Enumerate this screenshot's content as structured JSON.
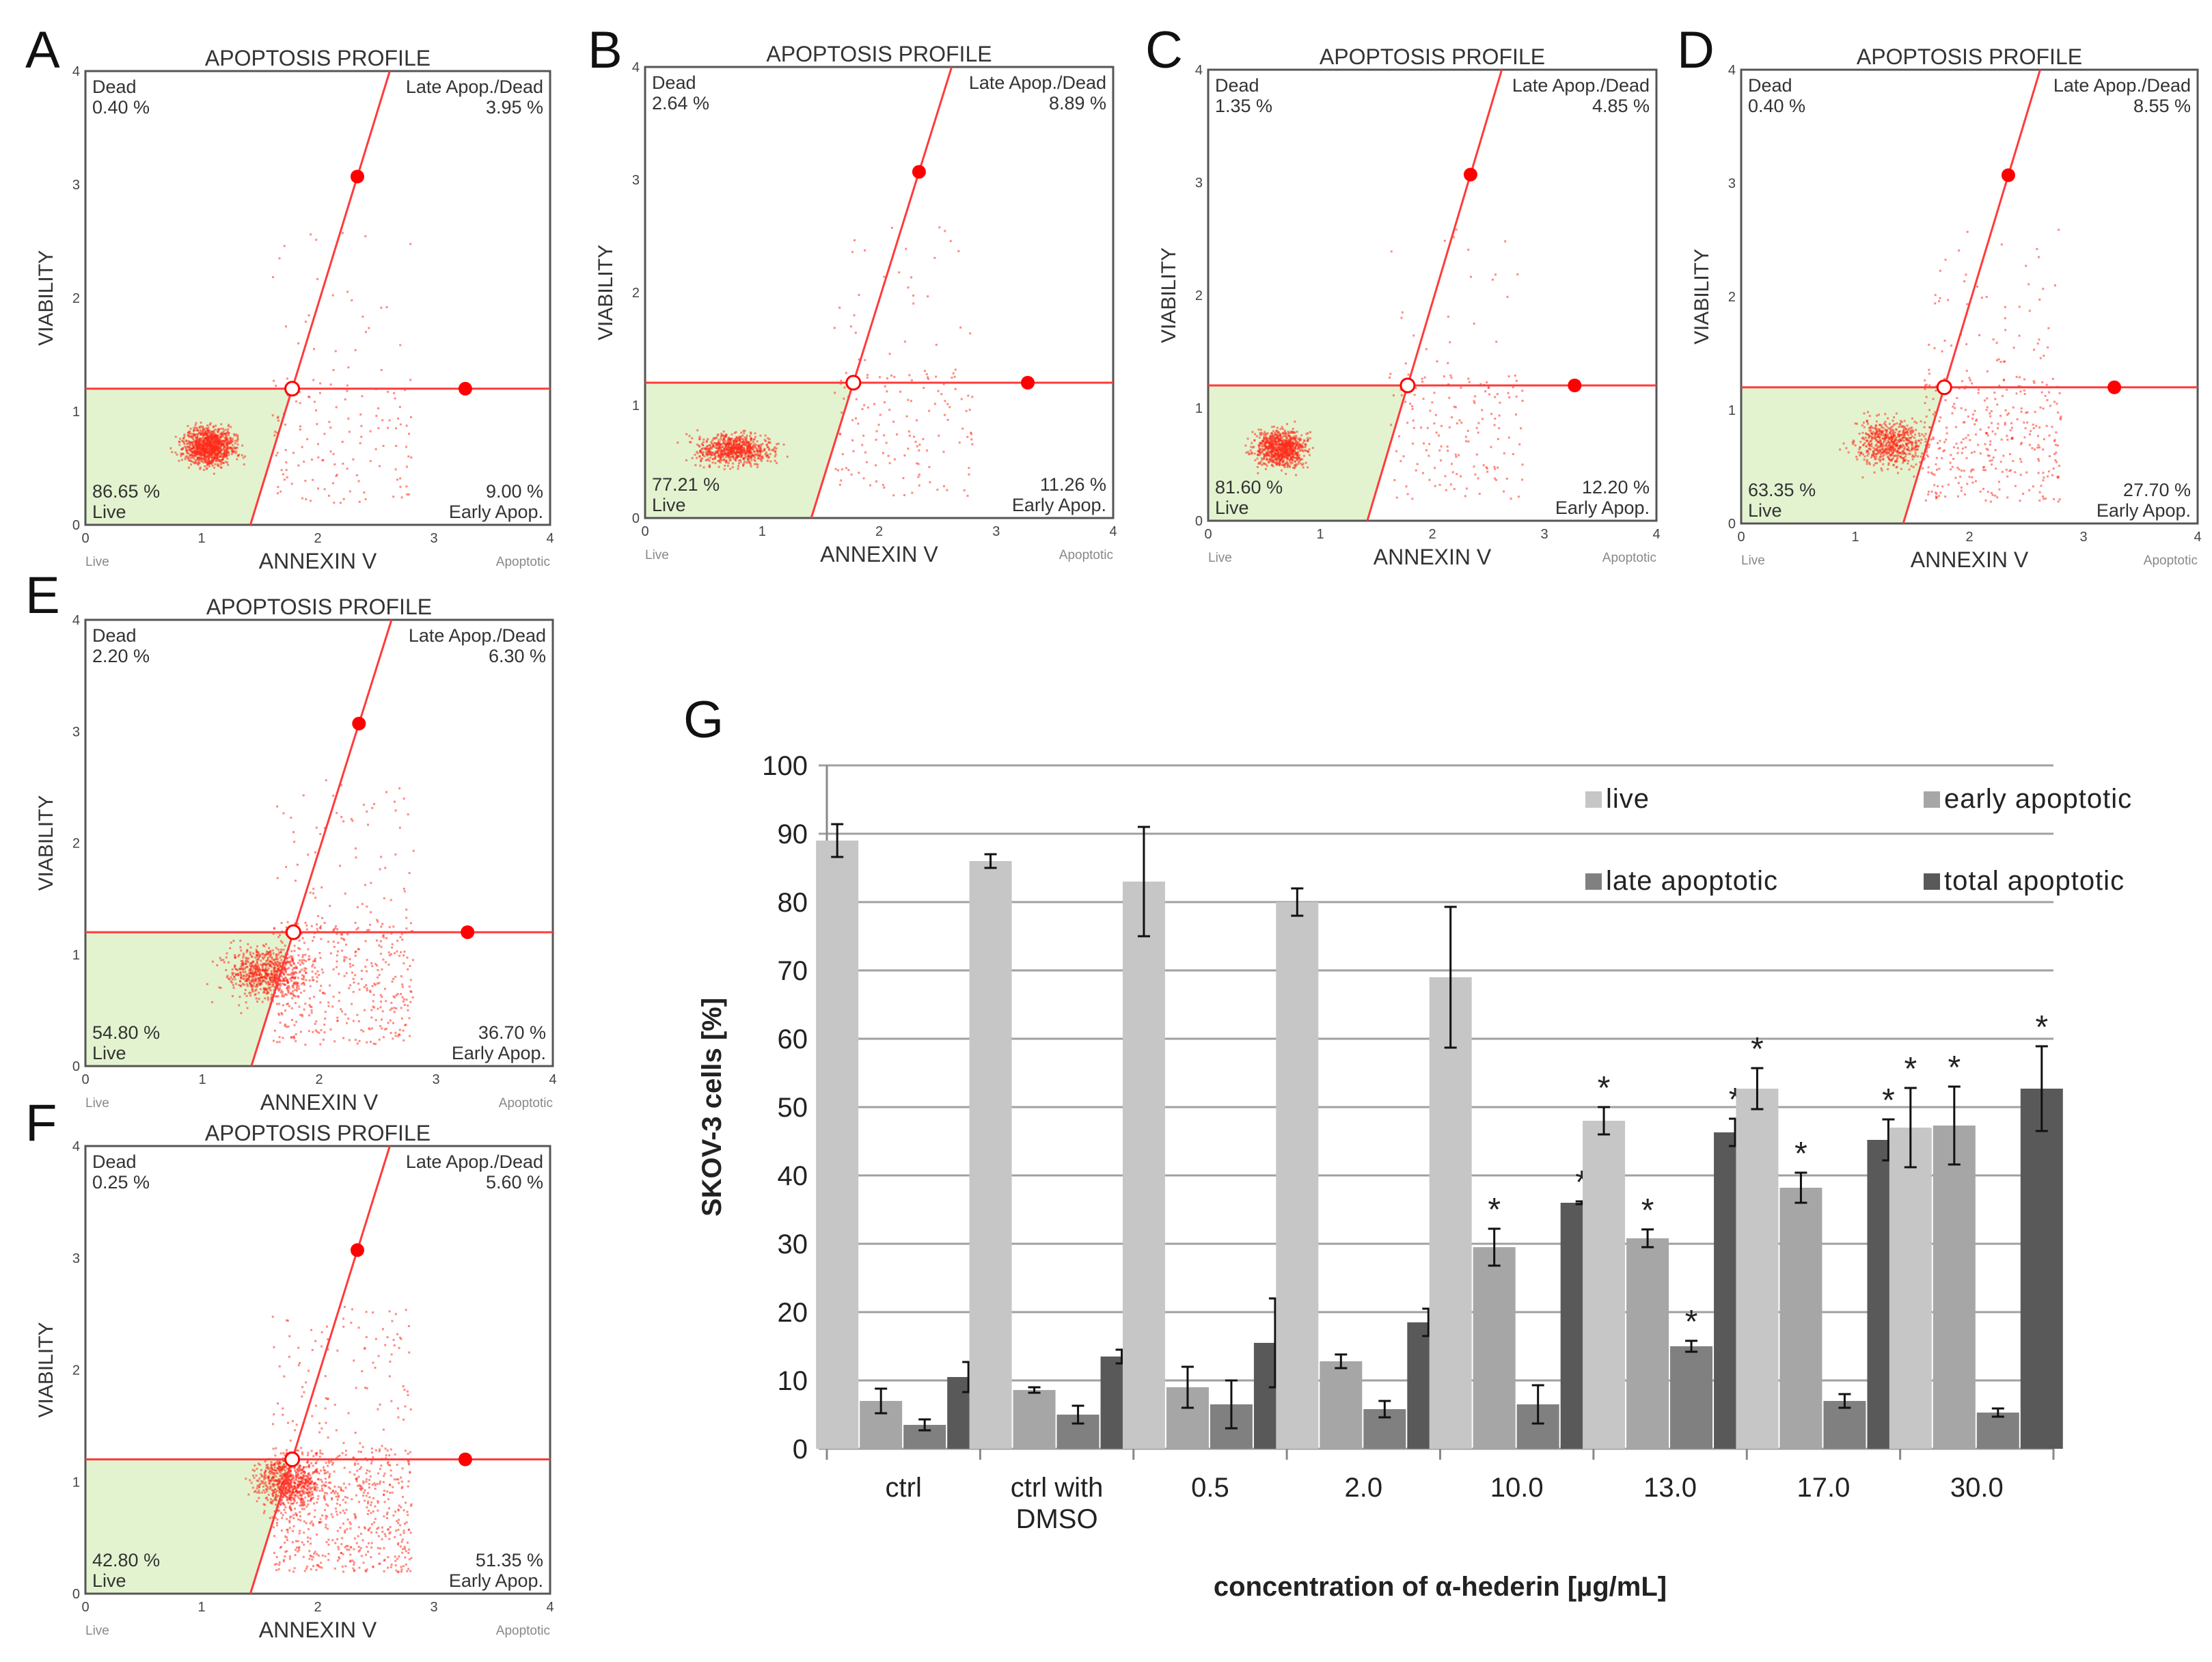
{
  "flow_panels": [
    {
      "letter": "A",
      "title": "APOPTOSIS PROFILE",
      "dead": "0.40 %",
      "late": "3.95 %",
      "live": "86.65 %",
      "early": "9.00 %"
    },
    {
      "letter": "B",
      "title": "APOPTOSIS PROFILE",
      "dead": "2.64 %",
      "late": "8.89 %",
      "live": "77.21 %",
      "early": "11.26 %"
    },
    {
      "letter": "C",
      "title": "APOPTOSIS PROFILE",
      "dead": "1.35 %",
      "late": "4.85 %",
      "live": "81.60 %",
      "early": "12.20 %"
    },
    {
      "letter": "D",
      "title": "APOPTOSIS PROFILE",
      "dead": "0.40 %",
      "late": "8.55 %",
      "live": "63.35 %",
      "early": "27.70 %"
    },
    {
      "letter": "E",
      "title": "APOPTOSIS PROFILE",
      "dead": "2.20 %",
      "late": "6.30 %",
      "live": "54.80 %",
      "early": "36.70 %"
    },
    {
      "letter": "F",
      "title": "APOPTOSIS PROFILE",
      "dead": "0.25 %",
      "late": "5.60 %",
      "live": "42.80 %",
      "early": "51.35 %"
    }
  ],
  "flow_labels": {
    "dead": "Dead",
    "late": "Late Apop./Dead",
    "live": "Live",
    "early": "Early Apop.",
    "xlabel": "ANNEXIN V",
    "ylabel": "VIABILITY",
    "x_left": "Live",
    "x_right": "Apoptotic",
    "ticks": [
      "0",
      "1",
      "2",
      "3",
      "4"
    ]
  },
  "colors": {
    "live": "#c6c6c6",
    "early": "#a6a6a6",
    "late": "#808080",
    "total": "#595959",
    "dots": "#ff2a1a",
    "gate": "#ff3b3b",
    "live_region": "#e3f3cf",
    "grid": "#a0a0a0"
  },
  "chart_data": {
    "type": "bar",
    "panel_letter": "G",
    "title": "",
    "xlabel": "concentration  of α-hederin [µg/mL]",
    "ylabel": "SKOV-3 cells  [%]",
    "ylim": [
      0,
      100
    ],
    "yticks": [
      0,
      10,
      20,
      30,
      40,
      50,
      60,
      70,
      80,
      90,
      100
    ],
    "grid": true,
    "legend_position": "top-right",
    "categories": [
      "ctrl",
      "ctrl with\nDMSO",
      "0.5",
      "2.0",
      "10.0",
      "13.0",
      "17.0",
      "30.0"
    ],
    "series": [
      {
        "name": "live",
        "color": "#c6c6c6",
        "values": [
          89,
          86,
          83,
          80,
          69,
          48,
          52.7,
          47
        ],
        "errors": [
          2.4,
          1,
          8,
          2,
          10.3,
          2,
          3,
          5.8
        ],
        "significant": [
          false,
          false,
          false,
          false,
          false,
          true,
          true,
          true
        ]
      },
      {
        "name": "early apoptotic",
        "color": "#a6a6a6",
        "values": [
          7,
          8.6,
          9,
          12.8,
          29.5,
          30.8,
          38.2,
          47.3
        ],
        "errors": [
          1.8,
          0.4,
          3,
          1,
          2.7,
          1.3,
          2.2,
          5.7
        ],
        "significant": [
          false,
          false,
          false,
          false,
          true,
          true,
          true,
          true
        ]
      },
      {
        "name": "late apoptotic",
        "color": "#808080",
        "values": [
          3.5,
          5,
          6.5,
          5.8,
          6.5,
          15,
          7,
          5.3
        ],
        "errors": [
          0.8,
          1.3,
          3.5,
          1.2,
          2.8,
          0.8,
          1,
          0.6
        ],
        "significant": [
          false,
          false,
          false,
          false,
          false,
          true,
          false,
          false
        ]
      },
      {
        "name": "total apoptotic",
        "color": "#595959",
        "values": [
          10.5,
          13.5,
          15.5,
          18.5,
          36,
          46.3,
          45.2,
          52.7
        ],
        "errors": [
          2.2,
          1,
          6.5,
          2,
          0.2,
          2,
          3,
          6.2
        ],
        "significant": [
          false,
          false,
          false,
          false,
          true,
          true,
          true,
          true
        ]
      }
    ],
    "significance_marker": "*"
  }
}
